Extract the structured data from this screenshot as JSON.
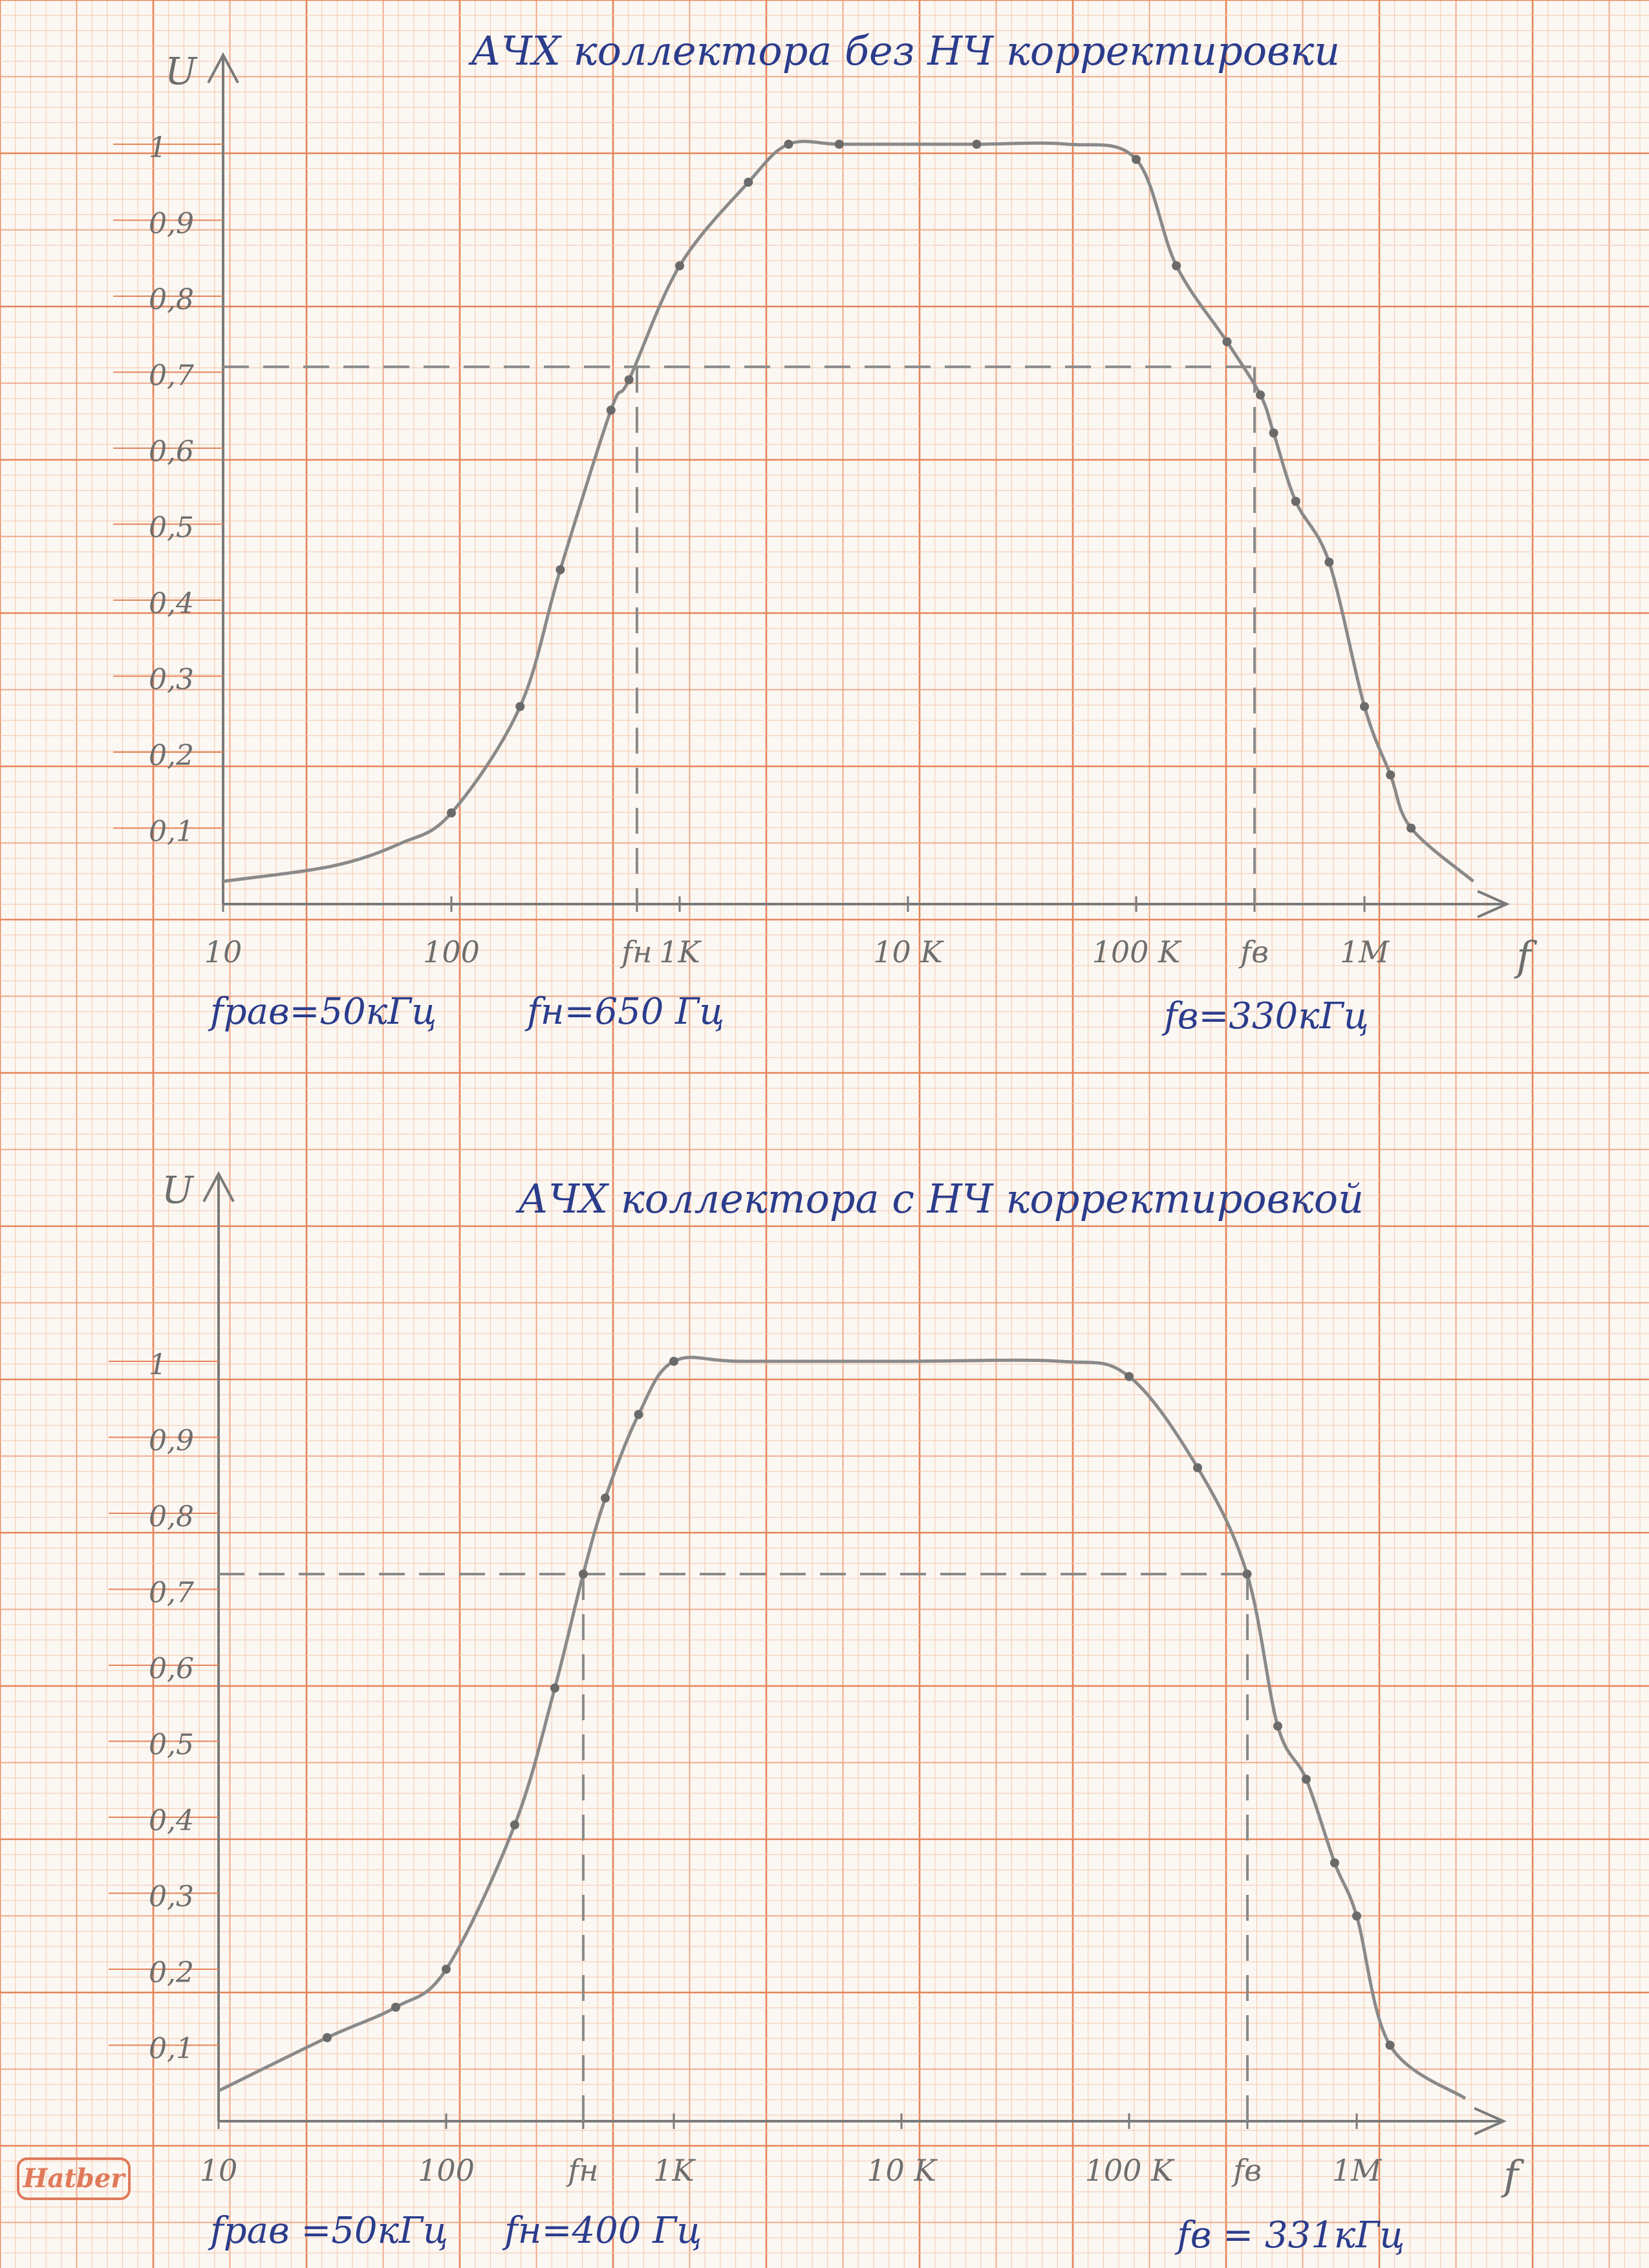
{
  "page": {
    "brand": "Hatber",
    "colors": {
      "paper": "#fbf7f2",
      "grid_minor": "#f3c7ad",
      "grid_major": "#eea27f",
      "grid_bold": "#e68459",
      "pencil": "#808080",
      "ink": "#2b3c8c"
    }
  },
  "chart_data": [
    {
      "type": "line",
      "title": "АЧХ   коллектора   без   НЧ  корректировки",
      "ylabel": "U",
      "xlabel": "f",
      "x_scale": "log",
      "xlim": [
        10,
        3000000
      ],
      "ylim": [
        0,
        1.1
      ],
      "grid": true,
      "x_ticks": [
        {
          "value": 10,
          "label": "10"
        },
        {
          "value": 100,
          "label": "100"
        },
        {
          "value": 650,
          "label": "fн"
        },
        {
          "value": 1000,
          "label": "1K"
        },
        {
          "value": 10000,
          "label": "10 K"
        },
        {
          "value": 100000,
          "label": "100 K"
        },
        {
          "value": 330000,
          "label": "fв"
        },
        {
          "value": 1000000,
          "label": "1M"
        }
      ],
      "y_ticks": [
        {
          "value": 0.1,
          "label": "0,1"
        },
        {
          "value": 0.2,
          "label": "0,2"
        },
        {
          "value": 0.3,
          "label": "0,3"
        },
        {
          "value": 0.4,
          "label": "0,4"
        },
        {
          "value": 0.5,
          "label": "0,5"
        },
        {
          "value": 0.6,
          "label": "0,6"
        },
        {
          "value": 0.7,
          "label": "0,7"
        },
        {
          "value": 0.8,
          "label": "0,8"
        },
        {
          "value": 0.9,
          "label": "0,9"
        },
        {
          "value": 1,
          "label": "1"
        }
      ],
      "reference_level": 0.707,
      "f_low": 650,
      "f_high": 330000,
      "series": [
        {
          "points": [
            [
              10,
              0.03
            ],
            [
              30,
              0.05
            ],
            [
              60,
              0.08
            ],
            [
              100,
              0.12
            ],
            [
              200,
              0.26
            ],
            [
              300,
              0.44
            ],
            [
              500,
              0.65
            ],
            [
              600,
              0.69
            ],
            [
              1000,
              0.84
            ],
            [
              2000,
              0.95
            ],
            [
              3000,
              1.0
            ],
            [
              5000,
              1.0
            ],
            [
              10000,
              1.0
            ],
            [
              20000,
              1.0
            ],
            [
              50000,
              1.0
            ],
            [
              100000,
              0.98
            ],
            [
              150000,
              0.84
            ],
            [
              250000,
              0.74
            ],
            [
              350000,
              0.67
            ],
            [
              400000,
              0.62
            ],
            [
              500000,
              0.53
            ],
            [
              700000,
              0.45
            ],
            [
              1000000,
              0.26
            ],
            [
              1300000,
              0.17
            ],
            [
              1600000,
              0.1
            ],
            [
              3000000,
              0.03
            ]
          ],
          "markers": [
            [
              100,
              0.12
            ],
            [
              200,
              0.26
            ],
            [
              300,
              0.44
            ],
            [
              500,
              0.65
            ],
            [
              600,
              0.69
            ],
            [
              1000,
              0.84
            ],
            [
              2000,
              0.95
            ],
            [
              3000,
              1.0
            ],
            [
              5000,
              1.0
            ],
            [
              20000,
              1.0
            ],
            [
              100000,
              0.98
            ],
            [
              150000,
              0.84
            ],
            [
              250000,
              0.74
            ],
            [
              350000,
              0.67
            ],
            [
              400000,
              0.62
            ],
            [
              500000,
              0.53
            ],
            [
              700000,
              0.45
            ],
            [
              1000000,
              0.26
            ],
            [
              1300000,
              0.17
            ],
            [
              1600000,
              0.1
            ]
          ]
        }
      ],
      "annotations": [
        {
          "text": "fрав=50кГц"
        },
        {
          "text": "fн=650 Гц"
        },
        {
          "text": "fв=330кГц"
        }
      ]
    },
    {
      "type": "line",
      "title": "АЧХ   коллектора   с   НЧ   корректировкой",
      "ylabel": "U",
      "xlabel": "f",
      "x_scale": "log",
      "xlim": [
        10,
        3000000
      ],
      "ylim": [
        0,
        1.1
      ],
      "grid": true,
      "x_ticks": [
        {
          "value": 10,
          "label": "10"
        },
        {
          "value": 100,
          "label": "100"
        },
        {
          "value": 400,
          "label": "fн"
        },
        {
          "value": 1000,
          "label": "1K"
        },
        {
          "value": 10000,
          "label": "10 K"
        },
        {
          "value": 100000,
          "label": "100 K"
        },
        {
          "value": 331000,
          "label": "fв"
        },
        {
          "value": 1000000,
          "label": "1M"
        }
      ],
      "y_ticks": [
        {
          "value": 0.1,
          "label": "0,1"
        },
        {
          "value": 0.2,
          "label": "0,2"
        },
        {
          "value": 0.3,
          "label": "0,3"
        },
        {
          "value": 0.4,
          "label": "0,4"
        },
        {
          "value": 0.5,
          "label": "0,5"
        },
        {
          "value": 0.6,
          "label": "0,6"
        },
        {
          "value": 0.7,
          "label": "0,7"
        },
        {
          "value": 0.8,
          "label": "0,8"
        },
        {
          "value": 0.9,
          "label": "0,9"
        },
        {
          "value": 1,
          "label": "1"
        }
      ],
      "reference_level": 0.72,
      "f_low": 400,
      "f_high": 331000,
      "series": [
        {
          "points": [
            [
              10,
              0.04
            ],
            [
              30,
              0.11
            ],
            [
              60,
              0.15
            ],
            [
              100,
              0.2
            ],
            [
              200,
              0.39
            ],
            [
              300,
              0.57
            ],
            [
              400,
              0.72
            ],
            [
              500,
              0.82
            ],
            [
              700,
              0.93
            ],
            [
              1000,
              1.0
            ],
            [
              2000,
              1.0
            ],
            [
              10000,
              1.0
            ],
            [
              50000,
              1.0
            ],
            [
              100000,
              0.98
            ],
            [
              200000,
              0.86
            ],
            [
              330000,
              0.72
            ],
            [
              450000,
              0.52
            ],
            [
              600000,
              0.45
            ],
            [
              800000,
              0.34
            ],
            [
              1000000,
              0.27
            ],
            [
              1400000,
              0.1
            ],
            [
              3000000,
              0.03
            ]
          ],
          "markers": [
            [
              30,
              0.11
            ],
            [
              60,
              0.15
            ],
            [
              100,
              0.2
            ],
            [
              200,
              0.39
            ],
            [
              300,
              0.57
            ],
            [
              400,
              0.72
            ],
            [
              500,
              0.82
            ],
            [
              700,
              0.93
            ],
            [
              1000,
              1.0
            ],
            [
              100000,
              0.98
            ],
            [
              200000,
              0.86
            ],
            [
              330000,
              0.72
            ],
            [
              450000,
              0.52
            ],
            [
              600000,
              0.45
            ],
            [
              800000,
              0.34
            ],
            [
              1000000,
              0.27
            ],
            [
              1400000,
              0.1
            ]
          ]
        }
      ],
      "annotations": [
        {
          "text": "fрав =50кГц"
        },
        {
          "text": "fн=400 Гц"
        },
        {
          "text": "fв = 331кГц"
        }
      ]
    }
  ]
}
